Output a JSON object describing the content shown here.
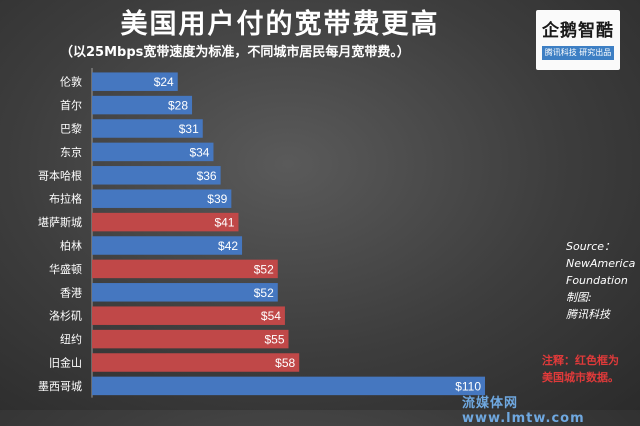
{
  "title": "美国用户付的宽带费更高",
  "subtitle": "（以25Mbps宽带速度为标准，不同城市居民每月宽带费。）",
  "logo": {
    "text": "企鹅智酷",
    "sub": "腾讯科技 研究出品"
  },
  "source": {
    "line1": "Source：",
    "line2": "NewAmerica",
    "line3": "Foundation",
    "line4": "制图:",
    "line5": "腾讯科技"
  },
  "note": {
    "line1": "注释：红色框为",
    "line2": "美国城市数据。"
  },
  "watermark": "流媒体网www.lmtw.com",
  "colors": {
    "blue": "#4577c0",
    "red": "#c04848"
  },
  "chart_data": {
    "type": "bar",
    "orientation": "horizontal",
    "categories": [
      "伦敦",
      "首尔",
      "巴黎",
      "东京",
      "哥本哈根",
      "布拉格",
      "堪萨斯城",
      "柏林",
      "华盛顿",
      "香港",
      "洛杉矶",
      "纽约",
      "旧金山",
      "墨西哥城"
    ],
    "values": [
      24,
      28,
      31,
      34,
      36,
      39,
      41,
      42,
      52,
      52,
      54,
      55,
      58,
      110
    ],
    "value_labels": [
      "$24",
      "$28",
      "$31",
      "$34",
      "$36",
      "$39",
      "$41",
      "$42",
      "$52",
      "$52",
      "$54",
      "$55",
      "$58",
      "$110"
    ],
    "us_city": [
      false,
      false,
      false,
      false,
      false,
      false,
      true,
      false,
      true,
      false,
      true,
      true,
      true,
      false
    ],
    "xlim": [
      0,
      110
    ],
    "grid": false,
    "legend": "none"
  }
}
